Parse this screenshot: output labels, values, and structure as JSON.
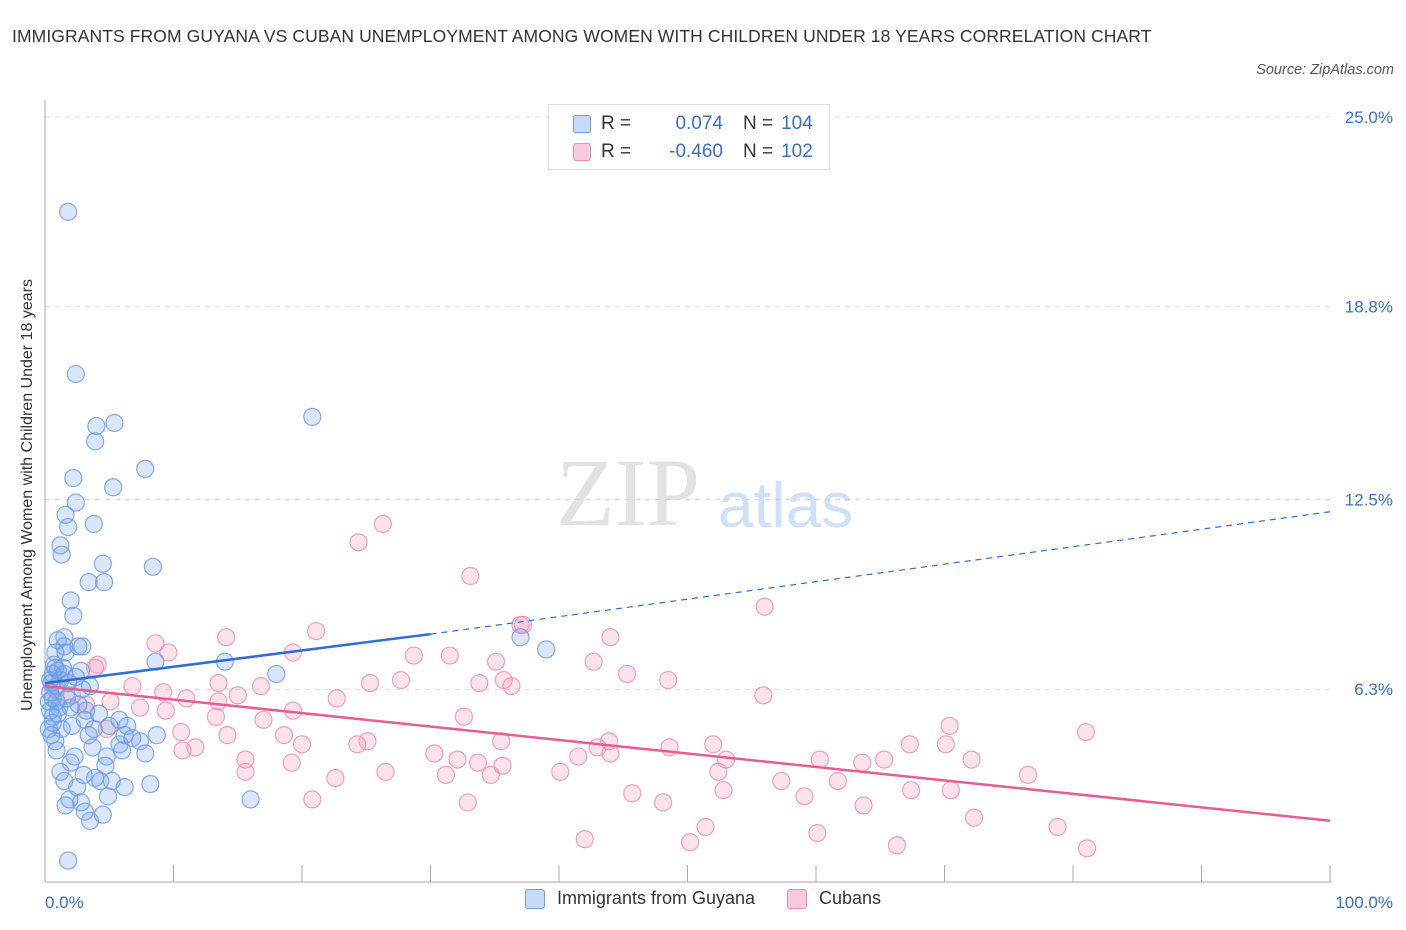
{
  "title": "IMMIGRANTS FROM GUYANA VS CUBAN UNEMPLOYMENT AMONG WOMEN WITH CHILDREN UNDER 18 YEARS CORRELATION CHART",
  "source": "Source: ZipAtlas.com",
  "watermark": {
    "zip": "ZIP",
    "atlas": "atlas"
  },
  "legend_top": [
    {
      "r_label": "R =",
      "r_value": "0.074",
      "n_label": "N =",
      "n_value": "104"
    },
    {
      "r_label": "R =",
      "r_value": "-0.460",
      "n_label": "N =",
      "n_value": "102"
    }
  ],
  "chart_data": {
    "type": "scatter",
    "ylabel": "Unemployment Among Women with Children Under 18 years",
    "xlim": [
      0,
      100
    ],
    "ylim": [
      0,
      25
    ],
    "x_tick_labels": [
      "0.0%",
      "100.0%"
    ],
    "y_tick_values": [
      6.3,
      12.5,
      18.8,
      25.0
    ],
    "y_tick_labels": [
      "6.3%",
      "12.5%",
      "18.8%",
      "25.0%"
    ],
    "grid": true,
    "legend_position": "bottom",
    "colors": {
      "guyana": "#6f9ee6",
      "guyana_line": "#2f6fd0",
      "cubans": "#ef8fb0",
      "cubans_line": "#e45e8f",
      "tick_label": "#3a6fc4"
    },
    "series": [
      {
        "name": "Immigrants from Guyana",
        "trend": {
          "x": [
            0,
            30
          ],
          "y": [
            6.5,
            8.1
          ],
          "dashed_to": [
            100,
            12.1
          ]
        },
        "points": [
          [
            1.8,
            21.9
          ],
          [
            2.4,
            16.6
          ],
          [
            5.4,
            15.0
          ],
          [
            20.8,
            15.2
          ],
          [
            4.0,
            14.9
          ],
          [
            3.9,
            14.4
          ],
          [
            7.8,
            13.5
          ],
          [
            2.2,
            13.2
          ],
          [
            5.3,
            12.9
          ],
          [
            2.4,
            12.4
          ],
          [
            1.6,
            12.0
          ],
          [
            1.8,
            11.6
          ],
          [
            3.8,
            11.7
          ],
          [
            1.2,
            11.0
          ],
          [
            1.3,
            10.7
          ],
          [
            4.5,
            10.4
          ],
          [
            8.4,
            10.3
          ],
          [
            3.4,
            9.8
          ],
          [
            4.6,
            9.8
          ],
          [
            2.0,
            9.2
          ],
          [
            2.2,
            8.7
          ],
          [
            1.5,
            8.0
          ],
          [
            1.0,
            7.9
          ],
          [
            1.5,
            7.7
          ],
          [
            2.6,
            7.7
          ],
          [
            0.8,
            7.5
          ],
          [
            1.6,
            7.5
          ],
          [
            2.9,
            7.7
          ],
          [
            37.0,
            8.0
          ],
          [
            39.0,
            7.6
          ],
          [
            8.6,
            7.2
          ],
          [
            14.0,
            7.2
          ],
          [
            0.8,
            7.0
          ],
          [
            1.5,
            6.8
          ],
          [
            2.8,
            6.9
          ],
          [
            0.6,
            6.8
          ],
          [
            1.2,
            6.6
          ],
          [
            0.5,
            6.5
          ],
          [
            0.9,
            6.4
          ],
          [
            3.5,
            6.4
          ],
          [
            18.0,
            6.8
          ],
          [
            2.9,
            6.3
          ],
          [
            1.8,
            6.5
          ],
          [
            0.4,
            6.2
          ],
          [
            0.6,
            6.0
          ],
          [
            0.3,
            5.9
          ],
          [
            1.1,
            5.7
          ],
          [
            2.0,
            5.7
          ],
          [
            4.2,
            5.5
          ],
          [
            5.8,
            5.3
          ],
          [
            0.4,
            5.6
          ],
          [
            1.0,
            5.5
          ],
          [
            3.1,
            5.3
          ],
          [
            0.6,
            5.2
          ],
          [
            0.3,
            5.0
          ],
          [
            1.3,
            5.0
          ],
          [
            3.8,
            5.0
          ],
          [
            6.4,
            5.1
          ],
          [
            0.5,
            4.8
          ],
          [
            3.4,
            4.8
          ],
          [
            6.2,
            4.8
          ],
          [
            7.4,
            4.6
          ],
          [
            8.7,
            4.8
          ],
          [
            3.7,
            4.4
          ],
          [
            0.9,
            4.3
          ],
          [
            6.0,
            4.3
          ],
          [
            7.8,
            4.2
          ],
          [
            2.3,
            4.1
          ],
          [
            2.0,
            3.9
          ],
          [
            4.7,
            3.8
          ],
          [
            1.2,
            3.6
          ],
          [
            3.0,
            3.5
          ],
          [
            4.3,
            3.3
          ],
          [
            1.5,
            3.3
          ],
          [
            3.9,
            3.4
          ],
          [
            5.2,
            3.3
          ],
          [
            6.2,
            3.1
          ],
          [
            8.2,
            3.2
          ],
          [
            2.5,
            3.1
          ],
          [
            4.9,
            2.8
          ],
          [
            1.9,
            2.7
          ],
          [
            2.8,
            2.6
          ],
          [
            16.0,
            2.7
          ],
          [
            1.6,
            2.5
          ],
          [
            3.1,
            2.3
          ],
          [
            4.5,
            2.2
          ],
          [
            3.5,
            2.0
          ],
          [
            1.8,
            0.7
          ],
          [
            0.6,
            5.4
          ],
          [
            2.6,
            5.8
          ],
          [
            1.0,
            6.9
          ],
          [
            0.7,
            7.1
          ],
          [
            1.4,
            7.0
          ],
          [
            2.1,
            5.1
          ],
          [
            4.8,
            4.1
          ],
          [
            5.8,
            4.5
          ],
          [
            6.8,
            4.7
          ],
          [
            0.9,
            5.9
          ],
          [
            1.7,
            6.0
          ],
          [
            2.4,
            6.7
          ],
          [
            3.2,
            5.6
          ],
          [
            0.4,
            6.6
          ],
          [
            5.0,
            5.1
          ],
          [
            0.8,
            4.6
          ]
        ]
      },
      {
        "name": "Cubans",
        "trend": {
          "x": [
            0,
            100
          ],
          "y": [
            6.4,
            2.0
          ]
        },
        "points": [
          [
            24.4,
            11.1
          ],
          [
            26.3,
            11.7
          ],
          [
            33.1,
            10.0
          ],
          [
            37.2,
            8.4
          ],
          [
            56.0,
            9.0
          ],
          [
            8.6,
            7.8
          ],
          [
            14.1,
            8.0
          ],
          [
            21.1,
            8.2
          ],
          [
            37.0,
            8.4
          ],
          [
            44.0,
            8.0
          ],
          [
            9.6,
            7.5
          ],
          [
            19.3,
            7.5
          ],
          [
            28.7,
            7.4
          ],
          [
            35.1,
            7.2
          ],
          [
            42.7,
            7.2
          ],
          [
            4.1,
            7.1
          ],
          [
            3.9,
            7.0
          ],
          [
            45.3,
            6.8
          ],
          [
            48.5,
            6.6
          ],
          [
            6.8,
            6.4
          ],
          [
            9.2,
            6.2
          ],
          [
            13.5,
            6.5
          ],
          [
            16.8,
            6.4
          ],
          [
            25.3,
            6.5
          ],
          [
            27.7,
            6.6
          ],
          [
            31.5,
            7.4
          ],
          [
            33.8,
            6.5
          ],
          [
            35.7,
            6.6
          ],
          [
            36.3,
            6.4
          ],
          [
            0.8,
            6.3
          ],
          [
            2.1,
            6.1
          ],
          [
            5.1,
            5.9
          ],
          [
            11.0,
            6.0
          ],
          [
            13.5,
            5.9
          ],
          [
            15.0,
            6.1
          ],
          [
            22.7,
            6.0
          ],
          [
            55.9,
            6.1
          ],
          [
            3.2,
            5.8
          ],
          [
            7.4,
            5.7
          ],
          [
            9.4,
            5.6
          ],
          [
            13.3,
            5.4
          ],
          [
            17.0,
            5.3
          ],
          [
            19.3,
            5.6
          ],
          [
            32.6,
            5.4
          ],
          [
            70.4,
            5.1
          ],
          [
            81.0,
            4.9
          ],
          [
            4.8,
            5.0
          ],
          [
            10.6,
            4.9
          ],
          [
            14.2,
            4.8
          ],
          [
            18.6,
            4.8
          ],
          [
            25.1,
            4.6
          ],
          [
            35.5,
            4.6
          ],
          [
            43.0,
            4.4
          ],
          [
            48.6,
            4.4
          ],
          [
            52.0,
            4.5
          ],
          [
            67.3,
            4.5
          ],
          [
            70.1,
            4.5
          ],
          [
            10.7,
            4.3
          ],
          [
            11.7,
            4.4
          ],
          [
            15.6,
            4.0
          ],
          [
            20.0,
            4.5
          ],
          [
            24.3,
            4.5
          ],
          [
            30.3,
            4.2
          ],
          [
            32.1,
            4.0
          ],
          [
            33.7,
            3.9
          ],
          [
            35.6,
            3.8
          ],
          [
            41.5,
            4.1
          ],
          [
            44.0,
            4.2
          ],
          [
            53.0,
            4.0
          ],
          [
            60.3,
            4.0
          ],
          [
            63.6,
            3.9
          ],
          [
            65.3,
            4.0
          ],
          [
            72.1,
            4.0
          ],
          [
            76.5,
            3.5
          ],
          [
            15.6,
            3.6
          ],
          [
            19.2,
            3.9
          ],
          [
            22.6,
            3.4
          ],
          [
            26.5,
            3.6
          ],
          [
            31.2,
            3.5
          ],
          [
            34.7,
            3.5
          ],
          [
            40.1,
            3.6
          ],
          [
            43.9,
            4.6
          ],
          [
            52.4,
            3.6
          ],
          [
            57.3,
            3.3
          ],
          [
            61.7,
            3.3
          ],
          [
            67.4,
            3.0
          ],
          [
            70.5,
            3.0
          ],
          [
            20.8,
            2.7
          ],
          [
            32.9,
            2.6
          ],
          [
            45.7,
            2.9
          ],
          [
            48.1,
            2.6
          ],
          [
            52.8,
            3.0
          ],
          [
            59.1,
            2.8
          ],
          [
            63.7,
            2.5
          ],
          [
            72.3,
            2.1
          ],
          [
            51.4,
            1.8
          ],
          [
            50.2,
            1.3
          ],
          [
            60.1,
            1.6
          ],
          [
            66.3,
            1.2
          ],
          [
            78.8,
            1.8
          ],
          [
            81.1,
            1.1
          ],
          [
            42.0,
            1.4
          ]
        ]
      }
    ]
  }
}
